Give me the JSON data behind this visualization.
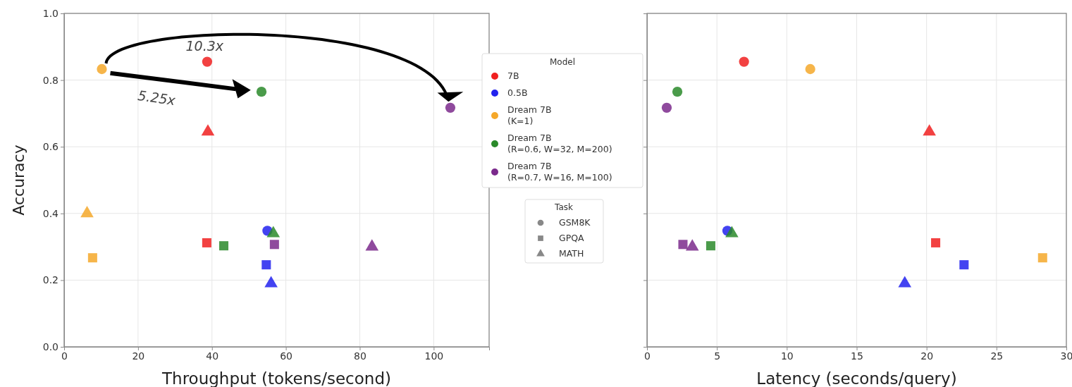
{
  "chart_data": [
    {
      "type": "scatter",
      "xlabel": "Throughput (tokens/second)",
      "ylabel": "Accuracy",
      "xlim": [
        0,
        115
      ],
      "xticks": [
        0,
        20,
        40,
        60,
        80,
        100
      ],
      "ylim": [
        0,
        1
      ],
      "yticks": [
        {
          "value": 0,
          "label": "0.0"
        },
        0.2,
        0.4,
        0.6,
        0.8,
        {
          "value": 1,
          "label": "1.0"
        }
      ],
      "grid": true,
      "legend": "right",
      "legend_title": "Model",
      "series": [
        {
          "name": "7B",
          "color": "#f02020",
          "x": [
            38.7,
            38.6,
            38.9
          ],
          "values": [
            0.855,
            0.312,
            0.645
          ],
          "marker": [
            "circle",
            "square",
            "triangle"
          ]
        },
        {
          "name": "0.5B",
          "color": "#2222ee",
          "x": [
            55.0,
            54.7,
            56.0
          ],
          "values": [
            0.348,
            0.246,
            0.19
          ],
          "marker": [
            "circle",
            "square",
            "triangle"
          ]
        },
        {
          "name": "Dream 7B\n(K=1)",
          "color": "#f5a82a",
          "x": [
            10.2,
            7.7,
            6.2
          ],
          "values": [
            0.833,
            0.267,
            0.4
          ],
          "marker": [
            "circle",
            "square",
            "triangle"
          ]
        },
        {
          "name": "Dream 7B\n(R=0.6, W=32, M=200)",
          "color": "#2a8a2a",
          "x": [
            53.4,
            43.2,
            56.6
          ],
          "values": [
            0.765,
            0.303,
            0.34
          ],
          "marker": [
            "circle",
            "square",
            "triangle"
          ]
        },
        {
          "name": "Dream 7B\n(R=0.7, W=16, M=100)",
          "color": "#7b2a8c",
          "x": [
            104.5,
            56.9,
            83.3
          ],
          "values": [
            0.717,
            0.307,
            0.3
          ],
          "marker": [
            "circle",
            "square",
            "triangle"
          ]
        }
      ],
      "annotations": [
        "10.3x",
        "5.25x",
        "Task",
        "GSM8K",
        "GPQA",
        "MATH"
      ]
    },
    {
      "type": "scatter",
      "xlabel": "Latency (seconds/query)",
      "xlim": [
        0,
        30
      ],
      "xticks": [
        0,
        5,
        10,
        15,
        20,
        25,
        30
      ],
      "ylim": [
        0,
        1
      ],
      "yticks": [
        0,
        0.2,
        0.4,
        0.6,
        0.8,
        1
      ],
      "grid": true,
      "tick_labels": "x",
      "series": [
        {
          "color": "#f02020",
          "x": [
            6.94,
            20.65,
            20.2
          ],
          "values": [
            0.855,
            0.312,
            0.645
          ],
          "marker": [
            "circle",
            "square",
            "triangle"
          ]
        },
        {
          "color": "#2222ee",
          "x": [
            5.75,
            22.68,
            18.44
          ],
          "values": [
            0.348,
            0.246,
            0.19
          ],
          "marker": [
            "circle",
            "square",
            "triangle"
          ]
        },
        {
          "color": "#f5a82a",
          "x": [
            11.68,
            28.3,
            null
          ],
          "values": [
            0.833,
            0.267,
            null
          ],
          "marker": [
            "circle",
            "square",
            "triangle"
          ]
        },
        {
          "color": "#2a8a2a",
          "x": [
            2.17,
            4.56,
            6.07
          ],
          "values": [
            0.765,
            0.303,
            0.34
          ],
          "marker": [
            "circle",
            "square",
            "triangle"
          ]
        },
        {
          "color": "#7b2a8c",
          "x": [
            1.41,
            2.57,
            3.24
          ],
          "values": [
            0.717,
            0.307,
            0.3
          ],
          "marker": [
            "circle",
            "square",
            "triangle"
          ]
        }
      ]
    }
  ]
}
